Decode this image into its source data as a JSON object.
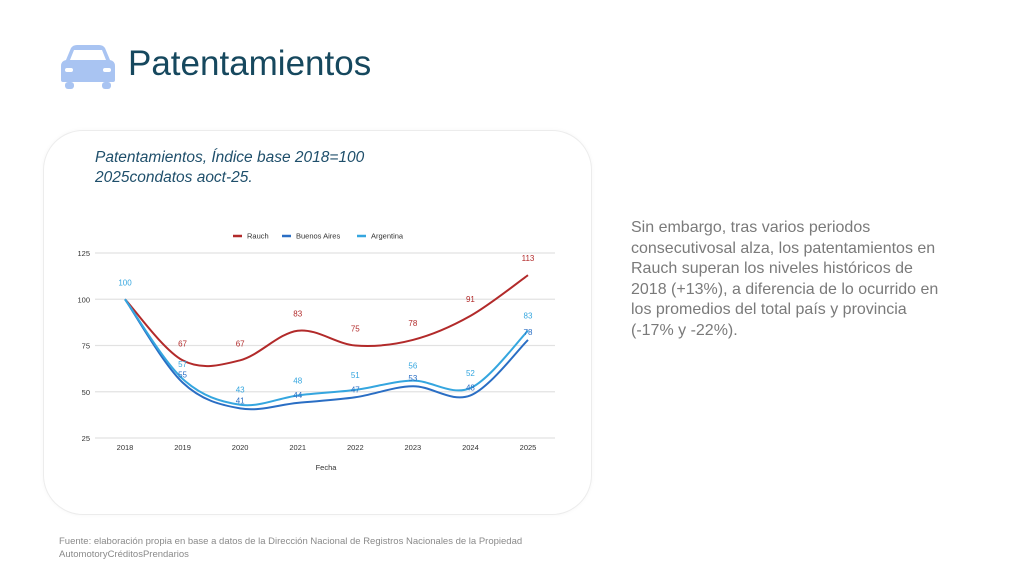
{
  "header": {
    "title": "Patentamientos",
    "icon": "car-icon"
  },
  "chart_title": [
    "Patentamientos, Índice base 2018=100",
    "2025condatos aoct-25."
  ],
  "side_text": "Sin embargo, tras varios periodos consecutivosal alza, los patentamientos en Rauch superan los niveles históricos de 2018 (+13%), a diferencia de lo ocurrido en los promedios del total país y provincia (-17% y -22%).",
  "source": [
    "Fuente: elaboración propia en base a datos de la Dirección Nacional de Registros Nacionales de la Propiedad",
    "AutomotoryCréditosPrendarios"
  ],
  "chart_data": {
    "type": "line",
    "xlabel": "Fecha",
    "ylabel": "",
    "categories": [
      "2018",
      "2019",
      "2020",
      "2021",
      "2022",
      "2023",
      "2024",
      "2025"
    ],
    "ylim": [
      25,
      125
    ],
    "yticks": [
      25,
      50,
      75,
      100,
      125
    ],
    "grid": true,
    "legend": "top-center",
    "series": [
      {
        "name": "Rauch",
        "color": "#b22a2a",
        "values": [
          100,
          67,
          67,
          83,
          75,
          78,
          91,
          113
        ]
      },
      {
        "name": "Buenos Aires",
        "color": "#2a6ec4",
        "values": [
          100,
          55,
          41,
          44,
          47,
          53,
          48,
          78
        ]
      },
      {
        "name": "Argentina",
        "color": "#35a6df",
        "values": [
          100,
          57,
          43,
          48,
          51,
          56,
          52,
          83
        ]
      }
    ]
  }
}
